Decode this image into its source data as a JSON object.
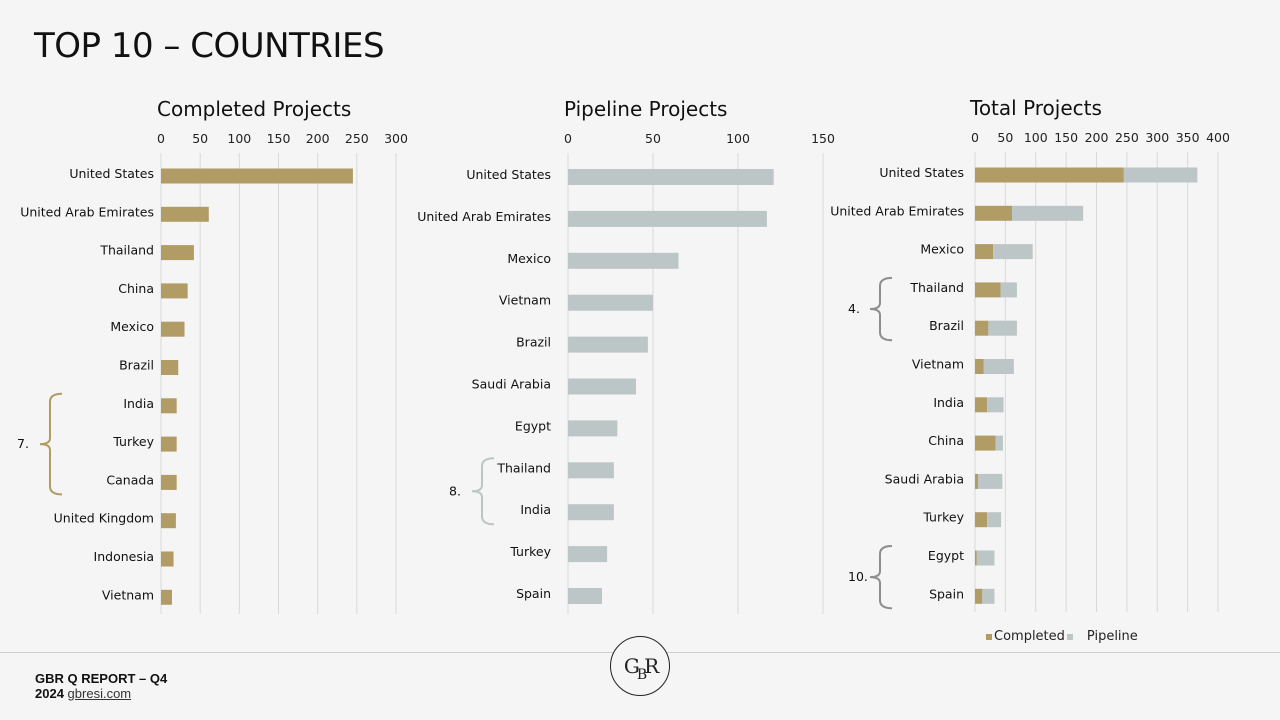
{
  "page": {
    "title": "TOP 10 – COUNTRIES",
    "footer_report": "GBR Q REPORT – Q4",
    "footer_year": "2024",
    "footer_link": "gbresi.com",
    "logo_text": "GBR"
  },
  "colors": {
    "completed": "#b19c65",
    "pipeline": "#bcc6c6",
    "grid": "#d9d9d9",
    "bracket": "#8e8e8e"
  },
  "chart_data": [
    {
      "type": "bar",
      "title": "Completed Projects",
      "orientation": "horizontal",
      "categories": [
        "United States",
        "United Arab Emirates",
        "Thailand",
        "China",
        "Mexico",
        "Brazil",
        "India",
        "Turkey",
        "Canada",
        "United Kingdom",
        "Indonesia",
        "Vietnam"
      ],
      "series": [
        {
          "values": [
            245,
            61,
            42,
            34,
            30,
            22,
            20,
            20,
            20,
            19,
            16,
            14
          ]
        }
      ],
      "xlim": [
        0,
        300
      ],
      "xticks": [
        0,
        50,
        100,
        150,
        200,
        250,
        300
      ],
      "grid": true,
      "brackets": [
        {
          "label": "7.",
          "from": 6,
          "to": 8
        }
      ]
    },
    {
      "type": "bar",
      "title": "Pipeline Projects",
      "orientation": "horizontal",
      "categories": [
        "United States",
        "United Arab Emirates",
        "Mexico",
        "Vietnam",
        "Brazil",
        "Saudi Arabia",
        "Egypt",
        "Thailand",
        "India",
        "Turkey",
        "Spain"
      ],
      "series": [
        {
          "values": [
            121,
            117,
            65,
            50,
            47,
            40,
            29,
            27,
            27,
            23,
            20
          ]
        }
      ],
      "xlim": [
        0,
        150
      ],
      "xticks": [
        0,
        50,
        100,
        150
      ],
      "grid": true,
      "brackets": [
        {
          "label": "8.",
          "from": 7,
          "to": 8
        }
      ]
    },
    {
      "type": "bar",
      "title": "Total Projects",
      "orientation": "horizontal",
      "stacked": true,
      "categories": [
        "United States",
        "United Arab Emirates",
        "Mexico",
        "Thailand",
        "Brazil",
        "Vietnam",
        "India",
        "China",
        "Saudi Arabia",
        "Turkey",
        "Egypt",
        "Spain"
      ],
      "series": [
        {
          "name": "Completed",
          "values": [
            245,
            61,
            30,
            42,
            22,
            14,
            20,
            34,
            5,
            20,
            3,
            12
          ]
        },
        {
          "name": "Pipeline",
          "values": [
            121,
            117,
            65,
            27,
            47,
            50,
            27,
            12,
            40,
            23,
            29,
            20
          ]
        }
      ],
      "xlim": [
        0,
        400
      ],
      "xticks": [
        0,
        50,
        100,
        150,
        200,
        250,
        300,
        350,
        400
      ],
      "grid": true,
      "legend": "bottom",
      "brackets": [
        {
          "label": "4.",
          "from": 3,
          "to": 4
        },
        {
          "label": "10.",
          "from": 10,
          "to": 11
        }
      ]
    }
  ]
}
